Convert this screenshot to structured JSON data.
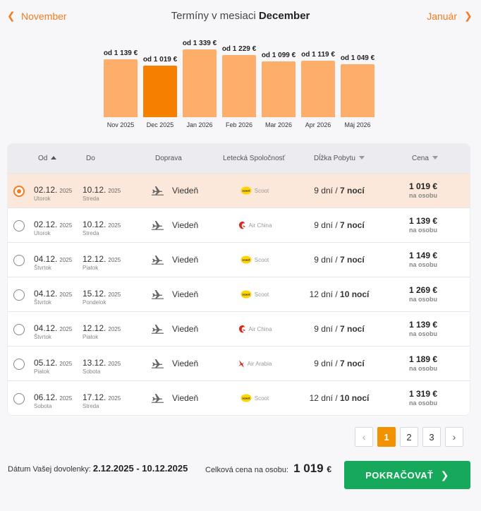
{
  "month_nav": {
    "prev_label": "November",
    "next_label": "Január",
    "title_prefix": "Termíny v mesiaci",
    "title_month": "December"
  },
  "chart_data": {
    "type": "bar",
    "categories": [
      "Nov 2025",
      "Dec 2025",
      "Jan 2026",
      "Feb 2026",
      "Mar 2026",
      "Apr 2026",
      "Máj 2026"
    ],
    "values": [
      1139,
      1019,
      1339,
      1229,
      1099,
      1119,
      1049
    ],
    "labels": [
      "od 1 139 €",
      "od 1 019 €",
      "od 1 339 €",
      "od 1 229 €",
      "od 1 099 €",
      "od 1 119 €",
      "od 1 049 €"
    ],
    "active_index": 1,
    "colors": {
      "bar": "#fdae6b",
      "active": "#f77f00"
    }
  },
  "table": {
    "headers": {
      "od": "Od",
      "do": "Do",
      "doprava": "Doprava",
      "spolocnost": "Letecká Spoločnosť",
      "dlzka": "Dĺžka Pobytu",
      "cena": "Cena"
    },
    "rows": [
      {
        "selected": true,
        "from_date": "02.12.",
        "from_year": "2025",
        "from_day": "Utorok",
        "to_date": "10.12.",
        "to_year": "2025",
        "to_day": "Streda",
        "transport": "Viedeň",
        "airline": "Scoot",
        "airline_icon": "scoot-logo-icon",
        "days": "9 dní",
        "nights": "7 nocí",
        "price": "1 019 €",
        "per": "na osobu"
      },
      {
        "selected": false,
        "from_date": "02.12.",
        "from_year": "2025",
        "from_day": "Utorok",
        "to_date": "10.12.",
        "to_year": "2025",
        "to_day": "Streda",
        "transport": "Viedeň",
        "airline": "Air China",
        "airline_icon": "air-china-logo-icon",
        "days": "9 dní",
        "nights": "7 nocí",
        "price": "1 139 €",
        "per": "na osobu"
      },
      {
        "selected": false,
        "from_date": "04.12.",
        "from_year": "2025",
        "from_day": "Štvrtok",
        "to_date": "12.12.",
        "to_year": "2025",
        "to_day": "Piatok",
        "transport": "Viedeň",
        "airline": "Scoot",
        "airline_icon": "scoot-logo-icon",
        "days": "9 dní",
        "nights": "7 nocí",
        "price": "1 149 €",
        "per": "na osobu"
      },
      {
        "selected": false,
        "from_date": "04.12.",
        "from_year": "2025",
        "from_day": "Štvrtok",
        "to_date": "15.12.",
        "to_year": "2025",
        "to_day": "Pondelok",
        "transport": "Viedeň",
        "airline": "Scoot",
        "airline_icon": "scoot-logo-icon",
        "days": "12 dní",
        "nights": "10 nocí",
        "price": "1 269 €",
        "per": "na osobu"
      },
      {
        "selected": false,
        "from_date": "04.12.",
        "from_year": "2025",
        "from_day": "Štvrtok",
        "to_date": "12.12.",
        "to_year": "2025",
        "to_day": "Piatok",
        "transport": "Viedeň",
        "airline": "Air China",
        "airline_icon": "air-china-logo-icon",
        "days": "9 dní",
        "nights": "7 nocí",
        "price": "1 139 €",
        "per": "na osobu"
      },
      {
        "selected": false,
        "from_date": "05.12.",
        "from_year": "2025",
        "from_day": "Piatok",
        "to_date": "13.12.",
        "to_year": "2025",
        "to_day": "Sobota",
        "transport": "Viedeň",
        "airline": "Air Arabia",
        "airline_icon": "air-arabia-logo-icon",
        "days": "9 dní",
        "nights": "7 nocí",
        "price": "1 189 €",
        "per": "na osobu"
      },
      {
        "selected": false,
        "from_date": "06.12.",
        "from_year": "2025",
        "from_day": "Sobota",
        "to_date": "17.12.",
        "to_year": "2025",
        "to_day": "Streda",
        "transport": "Viedeň",
        "airline": "Scoot",
        "airline_icon": "scoot-logo-icon",
        "days": "12 dní",
        "nights": "10 nocí",
        "price": "1 319 €",
        "per": "na osobu"
      }
    ]
  },
  "pagination": {
    "pages": [
      "1",
      "2",
      "3"
    ],
    "current": "1"
  },
  "footer": {
    "date_label": "Dátum Vašej dovolenky:",
    "date_value": "2.12.2025 - 10.12.2025",
    "total_label": "Celková cena na osobu:",
    "total_value": "1 019",
    "total_currency": "€",
    "continue_label": "POKRAČOVAŤ"
  },
  "colors": {
    "accent": "#f47b20",
    "continue": "#17a95b",
    "selected_row": "#fbe8da"
  }
}
